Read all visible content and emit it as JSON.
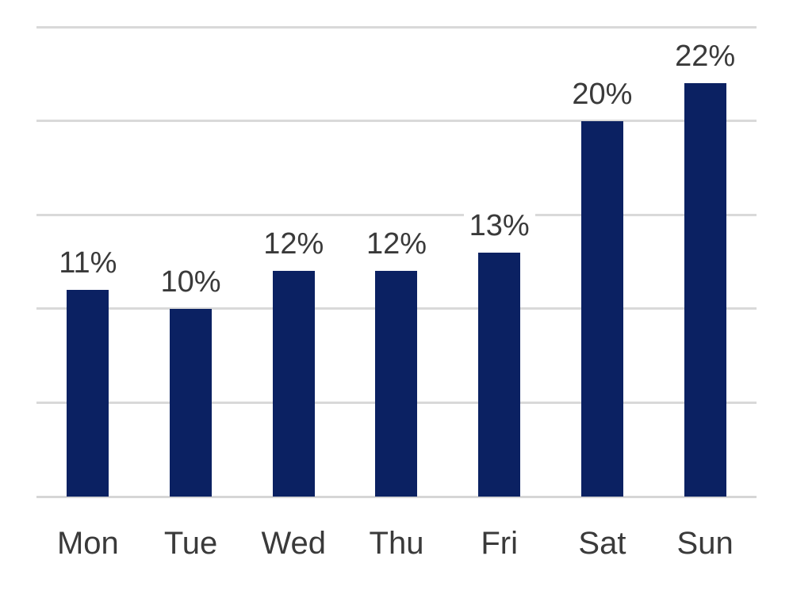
{
  "chart_data": {
    "type": "bar",
    "title": "",
    "xlabel": "",
    "ylabel": "",
    "categories": [
      "Mon",
      "Tue",
      "Wed",
      "Thu",
      "Fri",
      "Sat",
      "Sun"
    ],
    "values": [
      11,
      10,
      12,
      12,
      13,
      20,
      22
    ],
    "data_labels": [
      "11%",
      "10%",
      "12%",
      "12%",
      "13%",
      "20%",
      "22%"
    ],
    "ylim": [
      0,
      25
    ],
    "gridline_step": 5,
    "grid": true,
    "legend_position": "none",
    "colors": {
      "bar": "#0b2162",
      "gridline": "#d9d9d9",
      "baseline": "#d6d6d6",
      "label_text": "#3a3a3a",
      "axis_text": "#3a3a3a",
      "background": "#ffffff"
    }
  }
}
